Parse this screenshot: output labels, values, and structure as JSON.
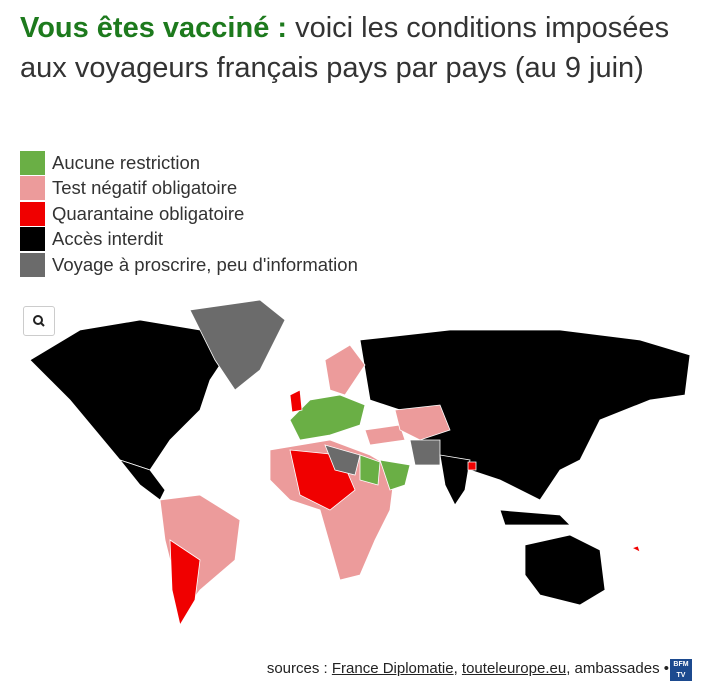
{
  "header": {
    "title_highlight": "Vous êtes vacciné :",
    "title_rest": "voici les conditions imposées aux voyageurs français pays par pays (au 9 juin)"
  },
  "legend": [
    {
      "label": "Aucune restriction",
      "color": "#6aaf45"
    },
    {
      "label": "Test négatif obligatoire",
      "color": "#ec9b9b"
    },
    {
      "label": "Quarantaine obligatoire",
      "color": "#f00000"
    },
    {
      "label": "Accès interdit",
      "color": "#000000"
    },
    {
      "label": "Voyage à proscrire, peu d'information",
      "color": "#6b6b6b"
    }
  ],
  "footer": {
    "prefix": "sources :",
    "link_1": "France Diplomatie",
    "separator": ",",
    "link_2": "touteleurope.eu",
    "suffix": ", ambassades •",
    "logo": "BFM TV"
  }
}
